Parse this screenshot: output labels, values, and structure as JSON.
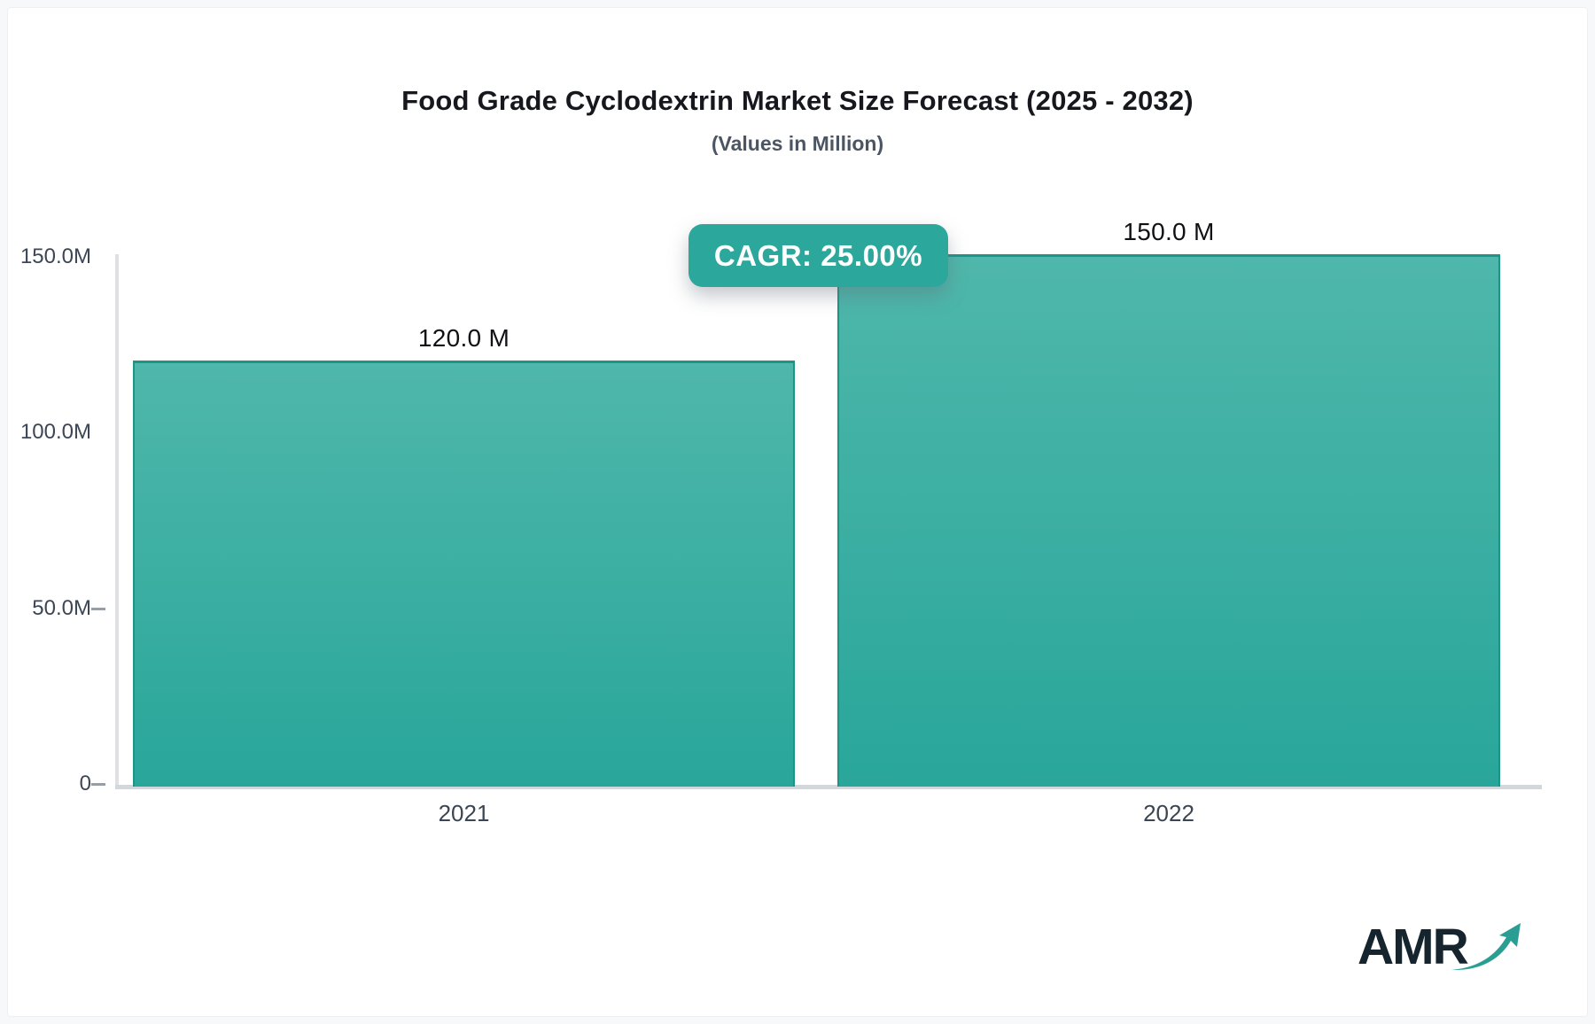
{
  "page": {
    "background": "#f7f8fa",
    "card_background": "#ffffff"
  },
  "header": {
    "title": "Food Grade Cyclodextrin Market Size Forecast (2025 - 2032)",
    "subtitle": "(Values in Million)"
  },
  "cagr_badge": {
    "label": "CAGR: 25.00%",
    "background": "#2BA79C",
    "text_color": "#FFFFFF"
  },
  "chart_data": {
    "type": "bar",
    "title": "Food Grade Cyclodextrin Market Size Forecast (2025 - 2032)",
    "subtitle": "(Values in Million)",
    "categories": [
      "2021",
      "2022"
    ],
    "values": [
      120.0,
      150.0
    ],
    "value_labels": [
      "120.0 M",
      "150.0 M"
    ],
    "unit": "Million",
    "ylim": [
      0,
      150
    ],
    "yticks": [
      {
        "value": 150,
        "label": "150.0M"
      },
      {
        "value": 100,
        "label": "100.0M"
      },
      {
        "value": 50,
        "label": "50.0M"
      },
      {
        "value": 0,
        "label": "0"
      }
    ],
    "xlabel": "",
    "ylabel": "",
    "grid": false,
    "legend": false,
    "bar_color_top": "#4FB7AB",
    "bar_color_bottom": "#29A69A",
    "bar_border_color": "#1E9488"
  },
  "logo": {
    "text": "AMR",
    "text_color": "#16242E",
    "arrow_color": "#2B9E94"
  }
}
